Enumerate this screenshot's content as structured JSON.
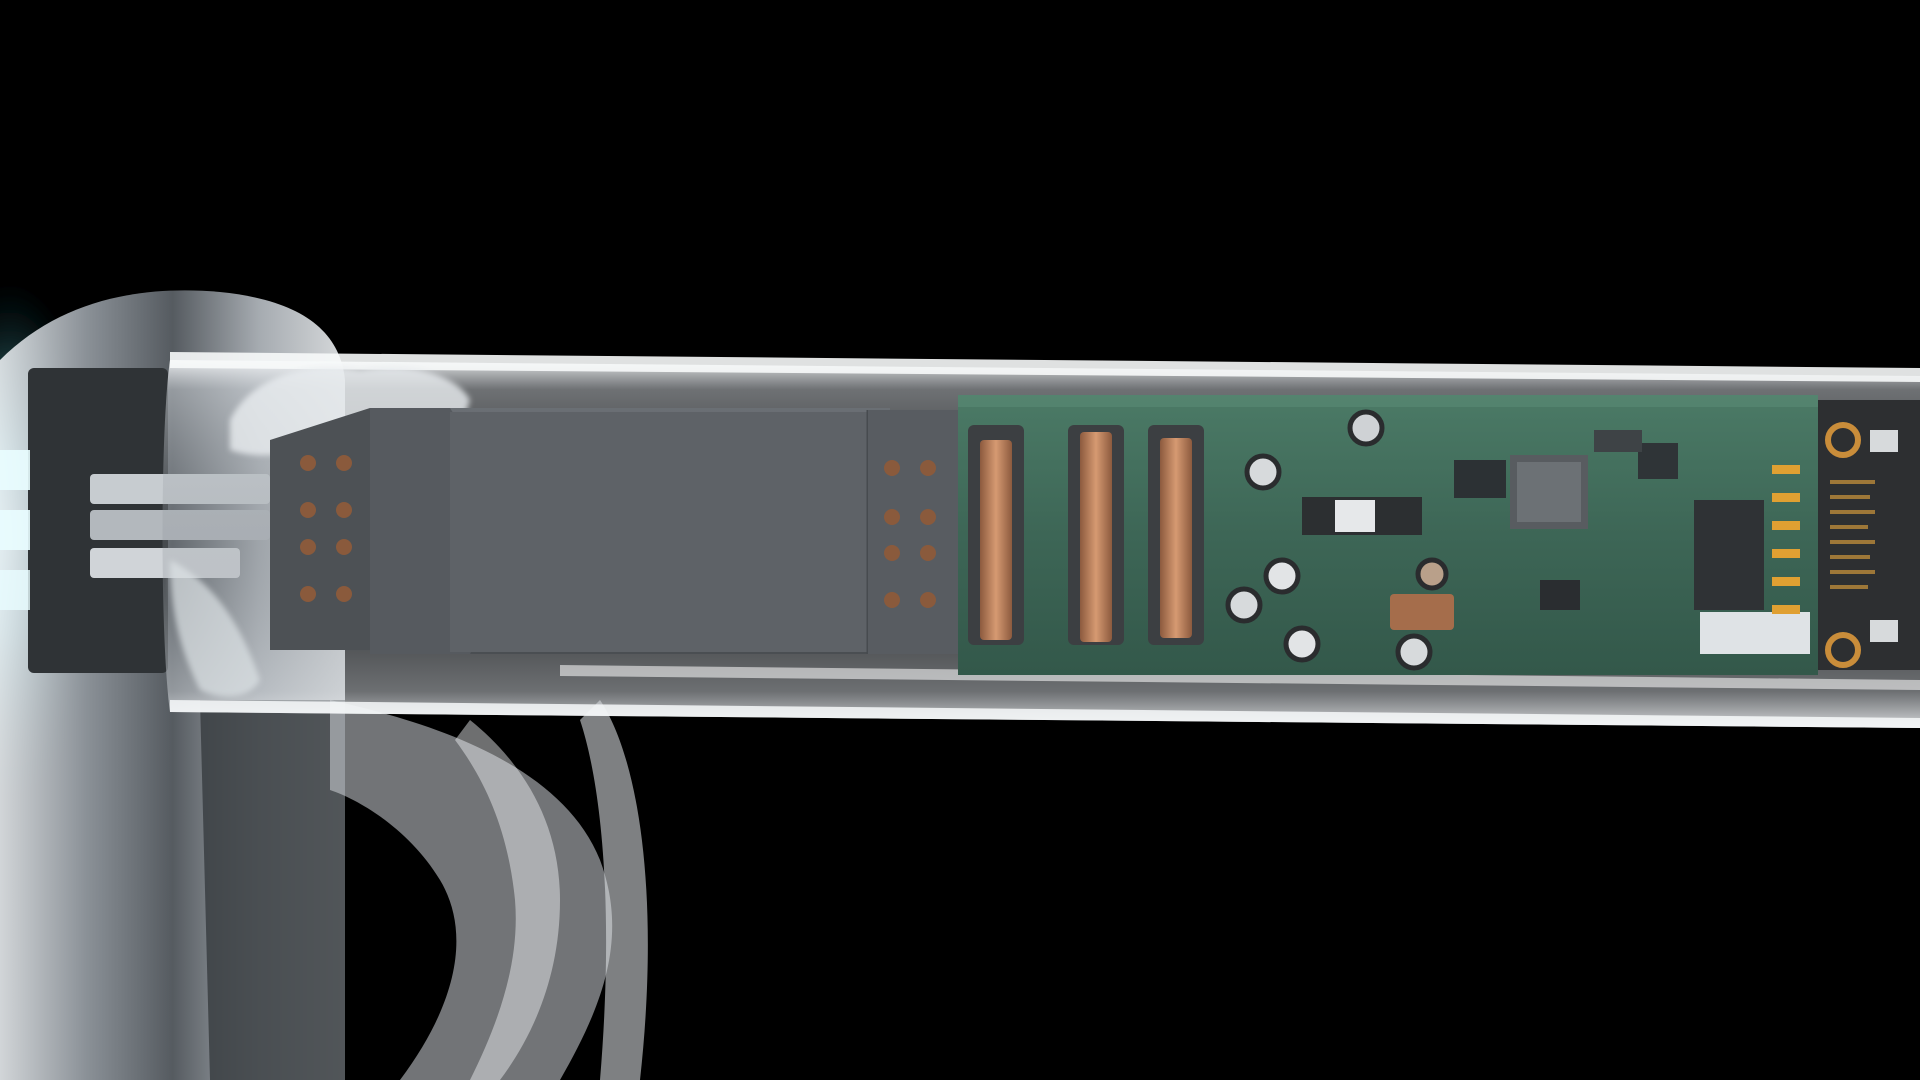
{
  "scene": {
    "subject": "transparent-glasses-temple-cutaway",
    "background_color": "#000000",
    "glass_tint": "#d8dde2",
    "hinge_glow_color": "#7ff3ff",
    "module_gray": "#5a5e63",
    "pcb_green": "#3d6656",
    "copper_color": "#c98a63",
    "gold_pad_color": "#e0a032",
    "connector_dot_color": "#8a5a3c"
  }
}
